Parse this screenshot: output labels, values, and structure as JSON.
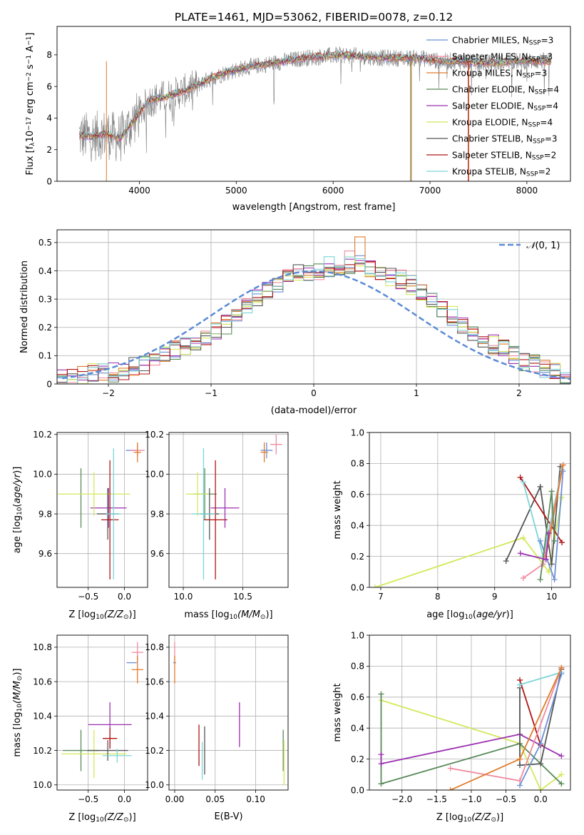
{
  "page_title": "PLATE=1461, MJD=53062, FIBERID=0078, z=0.12",
  "colors": {
    "chabrier_miles": "#6b8fd6",
    "salpeter_miles": "#f08a9e",
    "kroupa_miles": "#e07b2a",
    "chabrier_elodie": "#5a8a5a",
    "salpeter_elodie": "#9b30b0",
    "kroupa_elodie": "#d4e85a",
    "chabrier_stelib": "#555555",
    "salpeter_stelib": "#b01515",
    "kroupa_stelib": "#7dd4d8",
    "spectrum": "#7f7f7f",
    "normal": "#5b8bd6"
  },
  "chart_data": [
    {
      "id": "spectrum",
      "type": "line",
      "xlabel": "wavelength [Angstrom, rest frame]",
      "ylabel": "Flux [f",
      "ylabel_parts": [
        "Flux [f",
        "λ",
        "10",
        "−17",
        " erg cm",
        "−2",
        " s",
        "−1",
        " A",
        "−1",
        "]"
      ],
      "xlim": [
        3150,
        8450
      ],
      "ylim": [
        0,
        9.8
      ],
      "xticks": [
        4000,
        5000,
        6000,
        7000,
        8000
      ],
      "yticks": [
        0,
        2,
        4,
        6,
        8
      ],
      "legend_loc": "right",
      "legend": [
        {
          "text": "Chabrier MILES, N",
          "sub": "SSP",
          "tail": "=3",
          "color": "#6b8fd6"
        },
        {
          "text": "Salpeter MILES, N",
          "sub": "SSP",
          "tail": "=3",
          "color": "#f08a9e"
        },
        {
          "text": "Kroupa MILES, N",
          "sub": "SSP",
          "tail": "=3",
          "color": "#e07b2a"
        },
        {
          "text": "Chabrier ELODIE, N",
          "sub": "SSP",
          "tail": "=4",
          "color": "#5a8a5a"
        },
        {
          "text": "Salpeter ELODIE, N",
          "sub": "SSP",
          "tail": "=4",
          "color": "#9b30b0"
        },
        {
          "text": "Kroupa ELODIE, N",
          "sub": "SSP",
          "tail": "=4",
          "color": "#d4e85a"
        },
        {
          "text": "Chabrier STELIB, N",
          "sub": "SSP",
          "tail": "=3",
          "color": "#555555"
        },
        {
          "text": "Salpeter STELIB, N",
          "sub": "SSP",
          "tail": "=2",
          "color": "#b01515"
        },
        {
          "text": "Kroupa STELIB, N",
          "sub": "SSP",
          "tail": "=2",
          "color": "#7dd4d8"
        }
      ],
      "continuum": {
        "x": [
          3380,
          3500,
          3650,
          3800,
          3950,
          4100,
          4300,
          4500,
          4700,
          4900,
          5100,
          5300,
          5500,
          5700,
          5900,
          6100,
          6300,
          6500,
          6700,
          6900,
          7100,
          7300,
          7500,
          7700,
          7900,
          8100,
          8250
        ],
        "y": [
          2.9,
          2.8,
          3.0,
          2.7,
          3.9,
          5.1,
          5.4,
          5.8,
          6.4,
          6.9,
          7.2,
          7.4,
          7.6,
          7.8,
          7.9,
          8.0,
          7.9,
          7.8,
          7.8,
          7.8,
          7.6,
          7.6,
          7.5,
          7.5,
          7.6,
          7.6,
          7.6
        ]
      }
    },
    {
      "id": "residuals",
      "type": "histogram",
      "xlabel": "(data-model)/error",
      "ylabel": "Normed distribution",
      "xlim": [
        -2.5,
        2.5
      ],
      "ylim": [
        0,
        0.545
      ],
      "xticks": [
        -2,
        -1,
        0,
        1,
        2
      ],
      "xtick_labels": [
        "−2",
        "−1",
        "0",
        "1",
        "2"
      ],
      "yticks": [
        0,
        0.1,
        0.2,
        0.3,
        0.4,
        0.5
      ],
      "bin_width": 0.1,
      "bin_start": -2.5,
      "grid": true,
      "legend": {
        "label_parts": [
          "𝒩",
          "(0, 1)"
        ],
        "loc": "upper right"
      },
      "reference_counts": [
        0.02,
        0.02,
        0.03,
        0.04,
        0.04,
        0.04,
        0.05,
        0.06,
        0.07,
        0.08,
        0.1,
        0.12,
        0.13,
        0.15,
        0.16,
        0.19,
        0.21,
        0.24,
        0.28,
        0.3,
        0.33,
        0.35,
        0.38,
        0.39,
        0.39,
        0.4,
        0.4,
        0.41,
        0.42,
        0.43,
        0.41,
        0.4,
        0.38,
        0.37,
        0.35,
        0.33,
        0.3,
        0.27,
        0.24,
        0.21,
        0.18,
        0.16,
        0.14,
        0.12,
        0.1,
        0.08,
        0.07,
        0.05,
        0.04,
        0.03
      ],
      "peak_bins": [
        {
          "bin": 29,
          "value": 0.52
        },
        {
          "bin": 28,
          "value": 0.47
        },
        {
          "bin": 26,
          "value": 0.45
        }
      ]
    },
    {
      "id": "age_vs_Z",
      "type": "scatter-errorbar",
      "xlabel_parts": [
        "Z [log",
        "10",
        "(Z/Z",
        "⊙",
        ")]"
      ],
      "ylabel_parts": [
        "age  [log",
        "10",
        "(",
        "age/yr",
        ")]"
      ],
      "xlim": [
        -0.93,
        0.32
      ],
      "ylim": [
        9.43,
        10.21
      ],
      "xticks": [
        -0.5,
        0.0
      ],
      "xtick_labels": [
        "−0.5",
        "0.0"
      ],
      "yticks": [
        9.6,
        9.8,
        10.0,
        10.2
      ],
      "ytick_labels": [
        "9.6",
        "9.8",
        "10.0",
        "10.2"
      ],
      "points": [
        {
          "color": "#6b8fd6",
          "x": 0.1,
          "y": 10.12,
          "xerr": 0.08,
          "yerr": 0.0
        },
        {
          "color": "#f08a9e",
          "x": 0.18,
          "y": 10.12,
          "xerr": 0.1,
          "yerr": 0.03
        },
        {
          "color": "#e07b2a",
          "x": 0.18,
          "y": 10.11,
          "xerr": 0.05,
          "yerr": 0.05
        },
        {
          "color": "#5a8a5a",
          "x": -0.6,
          "y": 9.88,
          "xerr": 0.0,
          "yerr": 0.15
        },
        {
          "color": "#9b30b0",
          "x": -0.22,
          "y": 9.83,
          "xerr": 0.25,
          "yerr": 0.1
        },
        {
          "color": "#d4e85a",
          "x": -0.42,
          "y": 9.9,
          "xerr": 0.5,
          "yerr": 0.11
        },
        {
          "color": "#555555",
          "x": -0.23,
          "y": 9.8,
          "xerr": 0.15,
          "yerr": 0.13
        },
        {
          "color": "#b01515",
          "x": -0.2,
          "y": 9.77,
          "xerr": 0.12,
          "yerr": 0.3
        },
        {
          "color": "#7dd4d8",
          "x": -0.15,
          "y": 9.8,
          "xerr": 0.1,
          "yerr": 0.33
        }
      ]
    },
    {
      "id": "age_vs_mass",
      "type": "scatter-errorbar",
      "xlabel_parts": [
        "mass [log",
        "10",
        "(M/M",
        "⊙",
        ")]"
      ],
      "xlim": [
        9.88,
        10.88
      ],
      "ylim": [
        9.43,
        10.21
      ],
      "xticks": [
        10.0,
        10.5
      ],
      "xtick_labels": [
        "10.0",
        "10.5"
      ],
      "yticks": [
        9.6,
        9.8,
        10.0,
        10.2
      ],
      "ytick_labels": [
        "9.6",
        "9.8",
        "10.0",
        "10.2"
      ],
      "points": [
        {
          "color": "#6b8fd6",
          "x": 10.7,
          "y": 10.12,
          "xerr": 0.05,
          "yerr": 0.04
        },
        {
          "color": "#f08a9e",
          "x": 10.78,
          "y": 10.15,
          "xerr": 0.05,
          "yerr": 0.05
        },
        {
          "color": "#e07b2a",
          "x": 10.68,
          "y": 10.11,
          "xerr": 0.03,
          "yerr": 0.05
        },
        {
          "color": "#5a8a5a",
          "x": 10.18,
          "y": 9.9,
          "xerr": 0.1,
          "yerr": 0.13
        },
        {
          "color": "#9b30b0",
          "x": 10.35,
          "y": 9.83,
          "xerr": 0.12,
          "yerr": 0.1
        },
        {
          "color": "#d4e85a",
          "x": 10.12,
          "y": 9.9,
          "xerr": 0.1,
          "yerr": 0.11
        },
        {
          "color": "#555555",
          "x": 10.22,
          "y": 9.8,
          "xerr": 0.08,
          "yerr": 0.13
        },
        {
          "color": "#b01515",
          "x": 10.27,
          "y": 9.77,
          "xerr": 0.1,
          "yerr": 0.3
        },
        {
          "color": "#7dd4d8",
          "x": 10.17,
          "y": 9.8,
          "xerr": 0.1,
          "yerr": 0.33
        }
      ]
    },
    {
      "id": "weight_vs_age",
      "type": "line",
      "xlabel_parts": [
        "age  [log",
        "10",
        "(",
        "age/yr",
        ")]"
      ],
      "ylabel": "mass weight",
      "xlim": [
        6.8,
        10.33
      ],
      "ylim": [
        0,
        1.0
      ],
      "xticks": [
        7,
        8,
        9,
        10
      ],
      "yticks": [
        0,
        0.2,
        0.4,
        0.6,
        0.8,
        1.0
      ],
      "ytick_labels": [
        "0.0",
        "0.2",
        "0.4",
        "0.6",
        "0.8",
        "1.0"
      ],
      "series": [
        {
          "color": "#d4e85a",
          "x": [
            6.9,
            9.5,
            9.95,
            10.18
          ],
          "y": [
            0.0,
            0.32,
            0.1,
            0.58
          ]
        },
        {
          "color": "#555555",
          "x": [
            9.2,
            9.8,
            10.0,
            10.15
          ],
          "y": [
            0.17,
            0.65,
            0.15,
            0.78
          ]
        },
        {
          "color": "#b01515",
          "x": [
            9.45,
            10.18
          ],
          "y": [
            0.71,
            0.29
          ]
        },
        {
          "color": "#7dd4d8",
          "x": [
            9.5,
            9.85,
            10.18
          ],
          "y": [
            0.68,
            0.2,
            0.76
          ]
        },
        {
          "color": "#6b8fd6",
          "x": [
            9.8,
            10.05,
            10.2
          ],
          "y": [
            0.3,
            0.05,
            0.75
          ]
        },
        {
          "color": "#f08a9e",
          "x": [
            9.5,
            9.85,
            10.2
          ],
          "y": [
            0.06,
            0.15,
            0.79
          ]
        },
        {
          "color": "#e07b2a",
          "x": [
            9.9,
            10.2
          ],
          "y": [
            0.2,
            0.79
          ]
        },
        {
          "color": "#5a8a5a",
          "x": [
            9.8,
            10.0,
            10.05
          ],
          "y": [
            0.05,
            0.62,
            0.3
          ]
        },
        {
          "color": "#9b30b0",
          "x": [
            9.45,
            9.9,
            9.95
          ],
          "y": [
            0.22,
            0.18,
            0.35
          ]
        }
      ]
    },
    {
      "id": "mass_vs_Z",
      "type": "scatter-errorbar",
      "xlabel_parts": [
        "Z [log",
        "10",
        "(Z/Z",
        "⊙",
        ")]"
      ],
      "ylabel_parts": [
        "mass [log",
        "10",
        "(M/M",
        "⊙",
        ")]"
      ],
      "xlim": [
        -0.93,
        0.32
      ],
      "ylim": [
        9.97,
        10.87
      ],
      "xticks": [
        -0.5,
        0.0
      ],
      "xtick_labels": [
        "−0.5",
        "0.0"
      ],
      "yticks": [
        10.0,
        10.2,
        10.4,
        10.6,
        10.8
      ],
      "ytick_labels": [
        "10.0",
        "10.2",
        "10.4",
        "10.6",
        "10.8"
      ],
      "points": [
        {
          "color": "#6b8fd6",
          "x": 0.1,
          "y": 10.71,
          "xerr": 0.07,
          "yerr": 0.0
        },
        {
          "color": "#f08a9e",
          "x": 0.18,
          "y": 10.77,
          "xerr": 0.08,
          "yerr": 0.06
        },
        {
          "color": "#e07b2a",
          "x": 0.18,
          "y": 10.67,
          "xerr": 0.08,
          "yerr": 0.08
        },
        {
          "color": "#5a8a5a",
          "x": -0.6,
          "y": 10.2,
          "xerr": 0.25,
          "yerr": 0.12
        },
        {
          "color": "#9b30b0",
          "x": -0.2,
          "y": 10.35,
          "xerr": 0.3,
          "yerr": 0.13
        },
        {
          "color": "#d4e85a",
          "x": -0.42,
          "y": 10.18,
          "xerr": 0.45,
          "yerr": 0.14
        },
        {
          "color": "#555555",
          "x": -0.23,
          "y": 10.2,
          "xerr": 0.28,
          "yerr": 0.06
        },
        {
          "color": "#b01515",
          "x": -0.2,
          "y": 10.27,
          "xerr": 0.1,
          "yerr": 0.06
        },
        {
          "color": "#7dd4d8",
          "x": -0.1,
          "y": 10.17,
          "xerr": 0.2,
          "yerr": 0.04
        }
      ]
    },
    {
      "id": "mass_vs_ebv",
      "type": "scatter-errorbar",
      "xlabel": "E(B-V)",
      "xlim": [
        -0.007,
        0.14
      ],
      "ylim": [
        9.97,
        10.87
      ],
      "xticks": [
        0.0,
        0.05,
        0.1
      ],
      "xtick_labels": [
        "0.00",
        "0.05",
        "0.10"
      ],
      "yticks": [
        10.0,
        10.2,
        10.4,
        10.6,
        10.8
      ],
      "ytick_labels": [
        "10.0",
        "10.2",
        "10.4",
        "10.6",
        "10.8"
      ],
      "points": [
        {
          "color": "#6b8fd6",
          "x": 0.0,
          "y": 10.71,
          "xerr": 0.0,
          "yerr": 0.0
        },
        {
          "color": "#f08a9e",
          "x": 0.0,
          "y": 10.77,
          "xerr": 0.0,
          "yerr": 0.06
        },
        {
          "color": "#e07b2a",
          "x": 0.0,
          "y": 10.67,
          "xerr": 0.0,
          "yerr": 0.08
        },
        {
          "color": "#5a8a5a",
          "x": 0.134,
          "y": 10.2,
          "xerr": 0.0,
          "yerr": 0.12
        },
        {
          "color": "#9b30b0",
          "x": 0.08,
          "y": 10.35,
          "xerr": 0.0,
          "yerr": 0.13
        },
        {
          "color": "#d4e85a",
          "x": 0.135,
          "y": 10.13,
          "xerr": 0.0,
          "yerr": 0.13
        },
        {
          "color": "#555555",
          "x": 0.037,
          "y": 10.2,
          "xerr": 0.0,
          "yerr": 0.14
        },
        {
          "color": "#b01515",
          "x": 0.03,
          "y": 10.23,
          "xerr": 0.0,
          "yerr": 0.12
        },
        {
          "color": "#7dd4d8",
          "x": 0.034,
          "y": 10.14,
          "xerr": 0.0,
          "yerr": 0.11
        }
      ]
    },
    {
      "id": "weight_vs_Z",
      "type": "line",
      "xlabel_parts": [
        "Z [log",
        "10",
        "(Z/Z",
        "⊙",
        ")]"
      ],
      "ylabel": "mass weight",
      "xlim": [
        -2.47,
        0.43
      ],
      "ylim": [
        0,
        1.0
      ],
      "xticks": [
        -2.0,
        -1.5,
        -1.0,
        -0.5,
        0.0
      ],
      "xtick_labels": [
        "−2.0",
        "−1.5",
        "−1.0",
        "−0.5",
        "0.0"
      ],
      "yticks": [
        0,
        0.2,
        0.4,
        0.6,
        0.8,
        1.0
      ],
      "ytick_labels": [
        "0.0",
        "0.2",
        "0.4",
        "0.6",
        "0.8",
        "1.0"
      ],
      "series": [
        {
          "color": "#d4e85a",
          "x": [
            -2.3,
            -0.3,
            0.0,
            0.3
          ],
          "y": [
            0.58,
            0.3,
            0.0,
            0.1
          ]
        },
        {
          "color": "#5a8a5a",
          "x": [
            -2.3,
            -2.3,
            -0.3,
            0.3
          ],
          "y": [
            0.62,
            0.04,
            0.3,
            0.04
          ]
        },
        {
          "color": "#9b30b0",
          "x": [
            -2.3,
            -2.3,
            -0.3,
            0.3
          ],
          "y": [
            0.23,
            0.17,
            0.36,
            0.22
          ]
        },
        {
          "color": "#555555",
          "x": [
            -0.3,
            -0.3,
            0.0,
            0.3
          ],
          "y": [
            0.66,
            0.16,
            0.17,
            0.78
          ]
        },
        {
          "color": "#b01515",
          "x": [
            -0.3,
            0.0
          ],
          "y": [
            0.71,
            0.29
          ]
        },
        {
          "color": "#7dd4d8",
          "x": [
            -0.3,
            0.3
          ],
          "y": [
            0.68,
            0.76
          ]
        },
        {
          "color": "#6b8fd6",
          "x": [
            -0.3,
            0.0,
            0.3
          ],
          "y": [
            0.03,
            0.3,
            0.75
          ]
        },
        {
          "color": "#f08a9e",
          "x": [
            -1.3,
            -0.3,
            0.3
          ],
          "y": [
            0.14,
            0.06,
            0.79
          ]
        },
        {
          "color": "#e07b2a",
          "x": [
            -1.3,
            -0.3,
            0.3
          ],
          "y": [
            0.0,
            0.2,
            0.79
          ]
        }
      ]
    }
  ]
}
